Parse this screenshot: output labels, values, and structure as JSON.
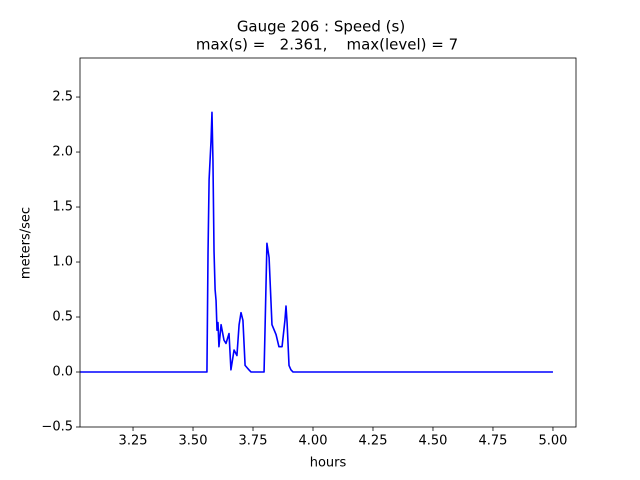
{
  "chart_data": {
    "type": "line",
    "title": [
      "Gauge 206 : Speed (s)",
      "max(s) =   2.361,    max(level) = 7"
    ],
    "xlabel": "hours",
    "ylabel": "meters/sec",
    "x": [
      3.029,
      3.558,
      3.5625,
      3.567,
      3.575,
      3.579,
      3.583,
      3.5875,
      3.592,
      3.596,
      3.6,
      3.604,
      3.608,
      3.617,
      3.629,
      3.6375,
      3.65,
      3.658,
      3.671,
      3.683,
      3.692,
      3.7,
      3.708,
      3.717,
      3.725,
      3.733,
      3.742,
      3.796,
      3.8,
      3.808,
      3.817,
      3.829,
      3.846,
      3.858,
      3.871,
      3.883,
      3.8875,
      3.892,
      3.9,
      3.908,
      3.917,
      5.0
    ],
    "series": [
      {
        "color": "#0000ff",
        "values": [
          0,
          0,
          1.08,
          1.75,
          2.1,
          2.361,
          1.93,
          1.1,
          0.75,
          0.65,
          0.38,
          0.45,
          0.23,
          0.43,
          0.29,
          0.26,
          0.35,
          0.02,
          0.2,
          0.15,
          0.43,
          0.54,
          0.47,
          0.06,
          0.04,
          0.02,
          0,
          0,
          0.38,
          1.17,
          1.04,
          0.43,
          0.34,
          0.23,
          0.23,
          0.47,
          0.6,
          0.45,
          0.06,
          0.02,
          0,
          0
        ]
      }
    ],
    "xlim": [
      3.029,
      5.096
    ],
    "ylim": [
      -0.5,
      2.855
    ],
    "xticks": [
      3.25,
      {
        "value": 3.5,
        "label": "3.50"
      },
      3.75,
      {
        "value": 4,
        "label": "4.00"
      },
      4.25,
      {
        "value": 4.5,
        "label": "4.50"
      },
      4.75,
      {
        "value": 5,
        "label": "5.00"
      }
    ],
    "yticks": [
      {
        "value": -0.5,
        "label": "−0.5"
      },
      {
        "value": 0,
        "label": "0.0"
      },
      0.5,
      {
        "value": 1,
        "label": "1.0"
      },
      1.5,
      {
        "value": 2,
        "label": "2.0"
      },
      2.5
    ],
    "grid": false
  }
}
